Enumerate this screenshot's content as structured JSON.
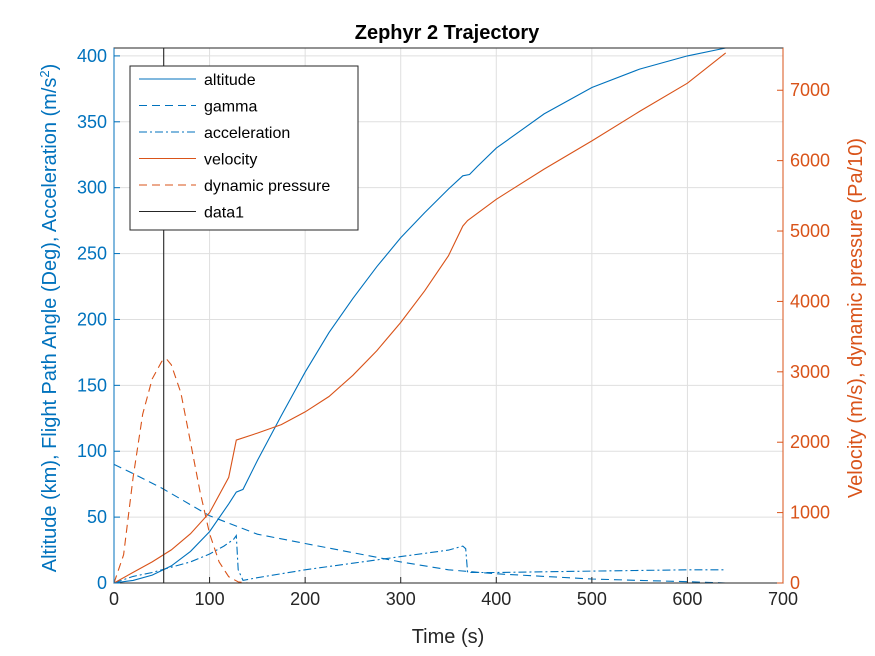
{
  "chart_data": {
    "type": "line",
    "title": "Zephyr 2 Trajectory",
    "xlabel": "Time (s)",
    "ylabel_left": "Altitude (km), Flight Path Angle (Deg), Acceleration (m/s²)",
    "ylabel_left_main": "Altitude (km), Flight Path Angle (Deg), Acceleration (m/s",
    "ylabel_left_sup": "2",
    "ylabel_left_tail": ")",
    "ylabel_right": "Velocity (m/s), dynamic pressure (Pa/10)",
    "xlim": [
      0,
      700
    ],
    "ylim_left": [
      0,
      406
    ],
    "ylim_right": [
      0,
      7600
    ],
    "xticks": [
      0,
      100,
      200,
      300,
      400,
      500,
      600,
      700
    ],
    "yticks_left": [
      0,
      50,
      100,
      150,
      200,
      250,
      300,
      350,
      400
    ],
    "yticks_right": [
      0,
      1000,
      2000,
      3000,
      4000,
      5000,
      6000,
      7000
    ],
    "grid": true,
    "legend_position": "top-left",
    "colors": {
      "left_axis": "#0072BD",
      "right_axis": "#D95319",
      "data1": "#262626",
      "grid": "#dfdfdf",
      "axis": "#262626"
    },
    "series": [
      {
        "name": "altitude",
        "axis": "left",
        "color": "#0072BD",
        "dash": "solid",
        "x": [
          0,
          20,
          40,
          60,
          80,
          100,
          120,
          128,
          135,
          150,
          175,
          200,
          225,
          250,
          275,
          300,
          325,
          350,
          365,
          372,
          380,
          400,
          450,
          500,
          550,
          600,
          640
        ],
        "y": [
          0,
          2,
          6,
          13,
          24,
          39,
          60,
          69,
          71,
          93,
          127,
          160,
          190,
          216,
          240,
          262,
          281,
          299,
          309,
          310,
          316,
          330,
          356,
          376,
          390,
          400,
          406
        ]
      },
      {
        "name": "gamma",
        "axis": "left",
        "color": "#0072BD",
        "dash": "8,5",
        "x": [
          0,
          20,
          50,
          100,
          150,
          200,
          250,
          300,
          350,
          400,
          450,
          500,
          550,
          600,
          640
        ],
        "y": [
          90,
          83,
          72,
          51,
          37,
          30,
          23,
          16,
          10,
          7,
          5,
          3,
          2,
          1,
          0
        ]
      },
      {
        "name": "acceleration",
        "axis": "left",
        "color": "#0072BD",
        "dash": "8,3,2,3",
        "x": [
          0,
          20,
          40,
          60,
          80,
          100,
          115,
          125,
          128,
          130,
          135,
          150,
          200,
          250,
          300,
          350,
          365,
          368,
          370,
          375,
          400,
          500,
          600,
          640
        ],
        "y": [
          0,
          5,
          8,
          12,
          16,
          22,
          28,
          33,
          36,
          10,
          2,
          4,
          10,
          15,
          20,
          25,
          28,
          26,
          8,
          8,
          8,
          9,
          10,
          10
        ]
      },
      {
        "name": "velocity",
        "axis": "right",
        "color": "#D95319",
        "dash": "solid",
        "x": [
          0,
          20,
          40,
          60,
          80,
          100,
          120,
          128,
          150,
          175,
          200,
          225,
          250,
          275,
          300,
          325,
          350,
          365,
          370,
          400,
          450,
          500,
          550,
          600,
          640
        ],
        "y": [
          0,
          150,
          300,
          470,
          700,
          1000,
          1500,
          2030,
          2130,
          2250,
          2430,
          2650,
          2950,
          3300,
          3700,
          4150,
          4650,
          5070,
          5150,
          5450,
          5880,
          6280,
          6700,
          7100,
          7530
        ]
      },
      {
        "name": "dynamic pressure",
        "axis": "right",
        "color": "#D95319",
        "dash": "8,5",
        "x": [
          0,
          10,
          20,
          30,
          40,
          50,
          55,
          60,
          70,
          80,
          90,
          100,
          110,
          120,
          130,
          140,
          200,
          300,
          400,
          500,
          640
        ],
        "y": [
          0,
          400,
          1500,
          2400,
          2900,
          3150,
          3180,
          3100,
          2700,
          2000,
          1300,
          700,
          300,
          90,
          15,
          0,
          0,
          0,
          0,
          0,
          0
        ]
      },
      {
        "name": "data1",
        "axis": "left",
        "color": "#262626",
        "dash": "solid",
        "x": [
          52,
          52
        ],
        "y": [
          0,
          406
        ]
      }
    ]
  }
}
